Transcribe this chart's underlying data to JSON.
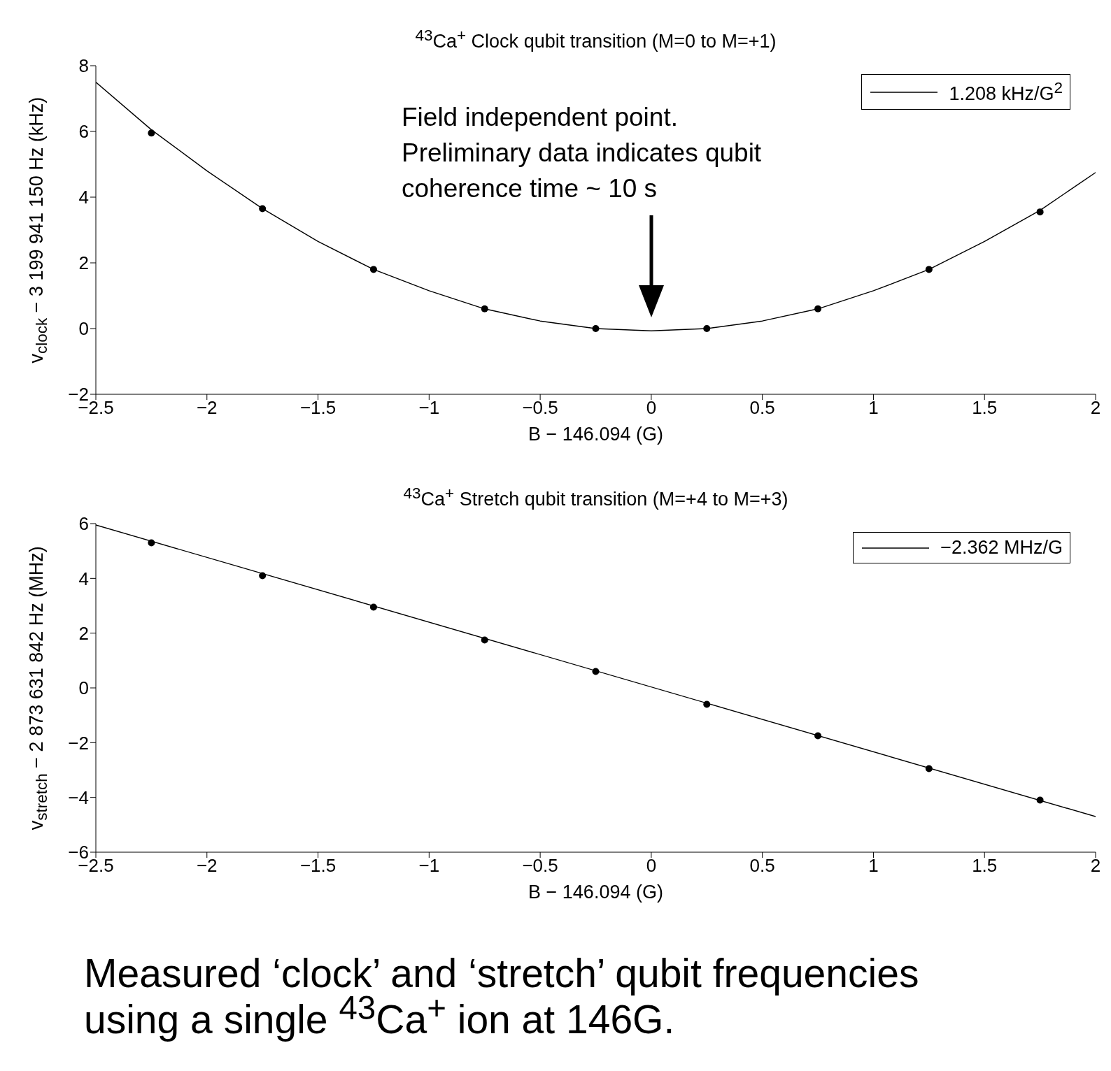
{
  "chart_data": [
    {
      "type": "scatter",
      "title": "$^{43}$Ca$^{+}$ Clock qubit transition (M=0 to M=+1)",
      "xlabel": "B − 146.094 (G)",
      "ylabel": "v$_{clock}$ − 3 199 941 150 Hz (kHz)",
      "xlim": [
        -2.5,
        2
      ],
      "xticks": [
        -2.5,
        -2,
        -1.5,
        -1,
        -0.5,
        0,
        0.5,
        1,
        1.5,
        2
      ],
      "ylim": [
        -2,
        8
      ],
      "yticks": [
        -2,
        0,
        2,
        4,
        6,
        8
      ],
      "grid": false,
      "legend": "top right",
      "annotations": [
        "Field independent point. Preliminary data indicates qubit coherence time ~ 10 s"
      ],
      "series": [
        {
          "color": "#000000",
          "marker": "circle",
          "x": [
            -2.25,
            -1.75,
            -1.25,
            -0.75,
            -0.25,
            0.25,
            0.75,
            1.25,
            1.75
          ],
          "values": [
            5.95,
            3.65,
            1.8,
            0.6,
            0,
            0,
            0.6,
            1.8,
            3.55
          ]
        },
        {
          "type": "line",
          "name": "1.208 kHz/G$^{2}$",
          "color": "#000000",
          "x": [
            -2.5,
            -2.25,
            -2,
            -1.75,
            -1.5,
            -1.25,
            -1,
            -0.75,
            -0.5,
            -0.25,
            0,
            0.25,
            0.5,
            0.75,
            1,
            1.25,
            1.5,
            1.75,
            2
          ],
          "values": [
            7.5,
            6.05,
            4.8,
            3.65,
            2.65,
            1.8,
            1.15,
            0.6,
            0.23,
            0,
            -0.07,
            0,
            0.23,
            0.6,
            1.15,
            1.8,
            2.65,
            3.6,
            4.75
          ]
        }
      ]
    },
    {
      "type": "scatter",
      "title": "$^{43}$Ca$^{+}$ Stretch qubit transition (M=+4 to M=+3)",
      "xlabel": "B − 146.094 (G)",
      "ylabel": "v$_{stretch}$ − 2 873 631 842 Hz (MHz)",
      "xlim": [
        -2.5,
        2
      ],
      "xticks": [
        -2.5,
        -2,
        -1.5,
        -1,
        -0.5,
        0,
        0.5,
        1,
        1.5,
        2
      ],
      "ylim": [
        -6,
        6
      ],
      "yticks": [
        -6,
        -4,
        -2,
        0,
        2,
        4,
        6
      ],
      "grid": false,
      "legend": "top right",
      "annotations": [
        "Measured ‘clock’ and ‘stretch’ qubit frequencies using a single $^{43}$Ca$^{+}$ ion at 146G."
      ],
      "series": [
        {
          "color": "#000000",
          "marker": "circle",
          "x": [
            -2.25,
            -1.75,
            -1.25,
            -0.75,
            -0.25,
            0.25,
            0.75,
            1.25,
            1.75
          ],
          "values": [
            5.3,
            4.1,
            2.95,
            1.75,
            0.6,
            -0.6,
            -1.75,
            -2.95,
            -4.1
          ]
        },
        {
          "type": "line",
          "name": "−2.362 MHz/G",
          "color": "#000000",
          "x": [
            -2.5,
            2
          ],
          "values": [
            5.95,
            -4.7
          ]
        }
      ]
    }
  ]
}
